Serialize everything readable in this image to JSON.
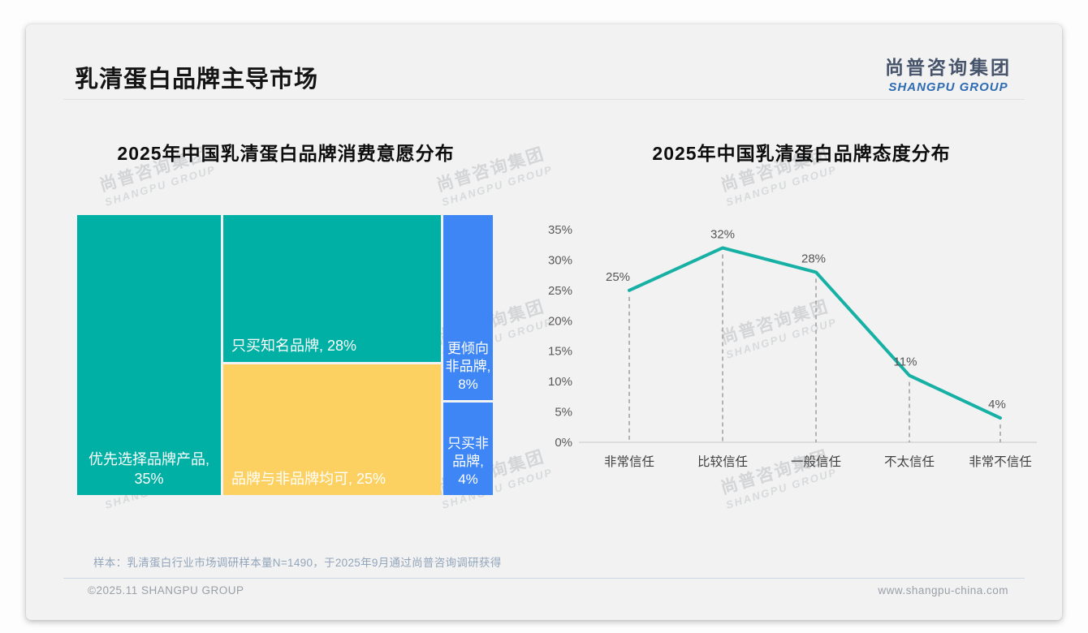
{
  "page": {
    "title": "乳清蛋白品牌主导市场",
    "logo": {
      "cn": "尚普咨询集团",
      "en": "SHANGPU GROUP"
    },
    "watermark": {
      "cn": "尚普咨询集团",
      "en": "SHANGPU GROUP"
    },
    "footer": {
      "note": "样本：乳清蛋白行业市场调研样本量N=1490，于2025年9月通过尚普咨询调研获得",
      "copyright": "©2025.11 SHANGPU GROUP",
      "website": "www.shangpu-china.com"
    }
  },
  "colors": {
    "teal": "#00B0A4",
    "yellow": "#FCD161",
    "blue": "#3E86F5",
    "line": "#17B0A4",
    "logo_blue": "#2F6BB3",
    "slide_bg": "#F2F2F3"
  },
  "chart_data": [
    {
      "type": "treemap",
      "title": "2025年中国乳清蛋白品牌消费意愿分布",
      "unit": "%",
      "items": [
        {
          "label": "优先选择品牌产品",
          "value": 35,
          "display": "优先选择品牌产品, 35%",
          "color": "#00B0A4"
        },
        {
          "label": "只买知名品牌",
          "value": 28,
          "display": "只买知名品牌, 28%",
          "color": "#00B0A4"
        },
        {
          "label": "品牌与非品牌均可",
          "value": 25,
          "display": "品牌与非品牌均可, 25%",
          "color": "#FCD161"
        },
        {
          "label": "更倾向非品牌",
          "value": 8,
          "display": "更倾向非品牌, 8%",
          "color": "#3E86F5"
        },
        {
          "label": "只买非品牌",
          "value": 4,
          "display": "只买非品牌, 4%",
          "color": "#3E86F5"
        }
      ]
    },
    {
      "type": "line",
      "title": "2025年中国乳清蛋白品牌态度分布",
      "categories": [
        "非常信任",
        "比较信任",
        "一般信任",
        "不太信任",
        "非常不信任"
      ],
      "values": [
        25,
        32,
        28,
        11,
        4
      ],
      "point_labels": [
        "25%",
        "32%",
        "28%",
        "11%",
        "4%"
      ],
      "ylim": [
        0,
        35
      ],
      "ytick_step": 5,
      "ytick_labels": [
        "0%",
        "5%",
        "10%",
        "15%",
        "20%",
        "25%",
        "30%",
        "35%"
      ],
      "unit": "%",
      "line_color": "#17B0A4",
      "grid": "dashed-vertical",
      "legend": "none"
    }
  ]
}
